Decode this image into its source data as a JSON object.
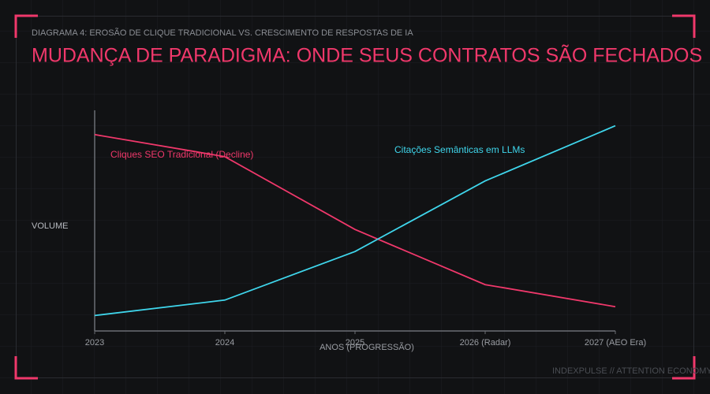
{
  "chart_data": {
    "type": "line",
    "subtitle": "DIAGRAMA 4: EROSÃO DE CLIQUE TRADICIONAL VS. CRESCIMENTO DE RESPOSTAS DE IA",
    "title": "MUDANÇA DE PARADIGMA: ONDE SEUS CONTRATOS SÃO FECHADOS",
    "y_label": "VOLUME",
    "x_label": "ANOS (PROGRESSÃO)",
    "footer": "INDEXPULSE // ATTENTION ECONOMY",
    "categories": [
      "2023",
      "2024",
      "2025",
      "2026 (Radar)",
      "2027 (AEO Era)"
    ],
    "series": [
      {
        "name": "Cliques SEO Tradicional (Decline)",
        "color": "#f0386b",
        "values": [
          89,
          79,
          46,
          21,
          11
        ]
      },
      {
        "name": "Citações Semânticas em LLMs",
        "color": "#3fd6ec",
        "values": [
          7,
          14,
          36,
          68,
          93
        ]
      }
    ],
    "ylim": [
      0,
      100
    ]
  }
}
